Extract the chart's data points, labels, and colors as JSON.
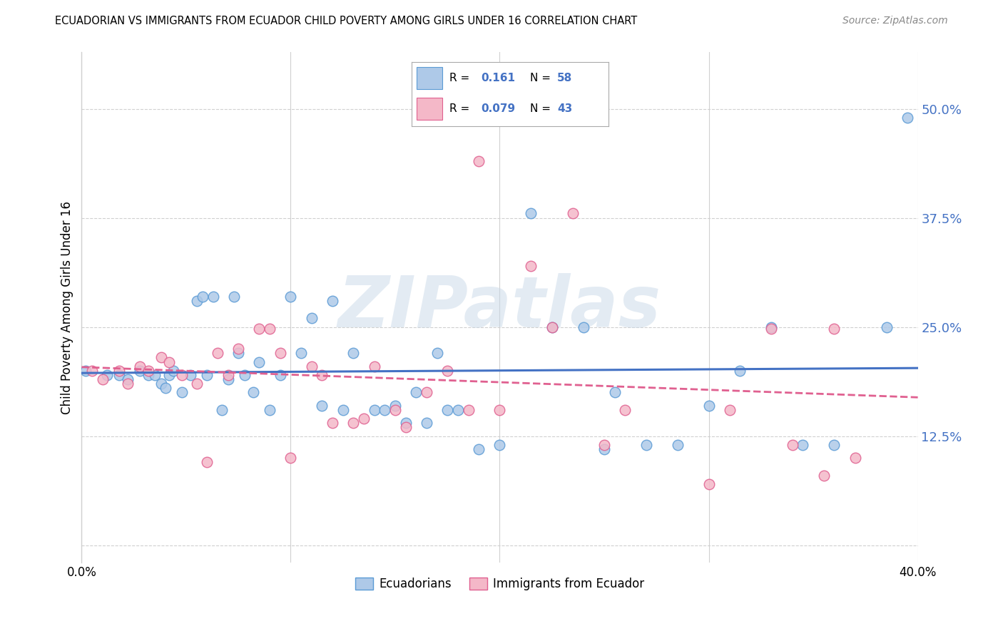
{
  "title": "ECUADORIAN VS IMMIGRANTS FROM ECUADOR CHILD POVERTY AMONG GIRLS UNDER 16 CORRELATION CHART",
  "source": "Source: ZipAtlas.com",
  "ylabel": "Child Poverty Among Girls Under 16",
  "xlim": [
    0.0,
    0.4
  ],
  "ylim": [
    -0.02,
    0.565
  ],
  "yticks": [
    0.0,
    0.125,
    0.25,
    0.375,
    0.5
  ],
  "ytick_labels": [
    "",
    "12.5%",
    "25.0%",
    "37.5%",
    "50.0%"
  ],
  "xticks": [
    0.0,
    0.1,
    0.2,
    0.3,
    0.4
  ],
  "xtick_labels_show": [
    "0.0%",
    "",
    "",
    "",
    "40.0%"
  ],
  "background_color": "#ffffff",
  "grid_color": "#d0d0d0",
  "watermark": "ZIPatlas",
  "blue_color": "#aec9e8",
  "pink_color": "#f4b8c8",
  "blue_edge_color": "#5b9bd5",
  "pink_edge_color": "#e06090",
  "blue_line_color": "#4472c4",
  "pink_line_color": "#e06090",
  "label_color": "#4472c4",
  "R_blue": 0.161,
  "N_blue": 58,
  "R_pink": 0.079,
  "N_pink": 43,
  "blue_x": [
    0.002,
    0.012,
    0.018,
    0.022,
    0.028,
    0.032,
    0.035,
    0.038,
    0.04,
    0.042,
    0.044,
    0.048,
    0.052,
    0.055,
    0.058,
    0.06,
    0.063,
    0.067,
    0.07,
    0.073,
    0.075,
    0.078,
    0.082,
    0.085,
    0.09,
    0.095,
    0.1,
    0.105,
    0.11,
    0.115,
    0.12,
    0.125,
    0.13,
    0.14,
    0.145,
    0.15,
    0.155,
    0.16,
    0.165,
    0.17,
    0.175,
    0.18,
    0.19,
    0.2,
    0.215,
    0.225,
    0.24,
    0.25,
    0.255,
    0.27,
    0.285,
    0.3,
    0.315,
    0.33,
    0.345,
    0.36,
    0.385,
    0.395
  ],
  "blue_y": [
    0.2,
    0.195,
    0.195,
    0.19,
    0.2,
    0.195,
    0.195,
    0.185,
    0.18,
    0.195,
    0.2,
    0.175,
    0.195,
    0.28,
    0.285,
    0.195,
    0.285,
    0.155,
    0.19,
    0.285,
    0.22,
    0.195,
    0.175,
    0.21,
    0.155,
    0.195,
    0.285,
    0.22,
    0.26,
    0.16,
    0.28,
    0.155,
    0.22,
    0.155,
    0.155,
    0.16,
    0.14,
    0.175,
    0.14,
    0.22,
    0.155,
    0.155,
    0.11,
    0.115,
    0.38,
    0.25,
    0.25,
    0.11,
    0.175,
    0.115,
    0.115,
    0.16,
    0.2,
    0.25,
    0.115,
    0.115,
    0.25,
    0.49
  ],
  "pink_x": [
    0.005,
    0.01,
    0.018,
    0.022,
    0.028,
    0.032,
    0.038,
    0.042,
    0.048,
    0.055,
    0.06,
    0.065,
    0.07,
    0.075,
    0.085,
    0.09,
    0.095,
    0.1,
    0.11,
    0.115,
    0.12,
    0.13,
    0.135,
    0.14,
    0.15,
    0.155,
    0.165,
    0.175,
    0.185,
    0.19,
    0.2,
    0.215,
    0.225,
    0.235,
    0.25,
    0.26,
    0.3,
    0.31,
    0.33,
    0.34,
    0.355,
    0.36,
    0.37
  ],
  "pink_y": [
    0.2,
    0.19,
    0.2,
    0.185,
    0.205,
    0.2,
    0.215,
    0.21,
    0.195,
    0.185,
    0.095,
    0.22,
    0.195,
    0.225,
    0.248,
    0.248,
    0.22,
    0.1,
    0.205,
    0.195,
    0.14,
    0.14,
    0.145,
    0.205,
    0.155,
    0.135,
    0.175,
    0.2,
    0.155,
    0.44,
    0.155,
    0.32,
    0.25,
    0.38,
    0.115,
    0.155,
    0.07,
    0.155,
    0.248,
    0.115,
    0.08,
    0.248,
    0.1
  ]
}
